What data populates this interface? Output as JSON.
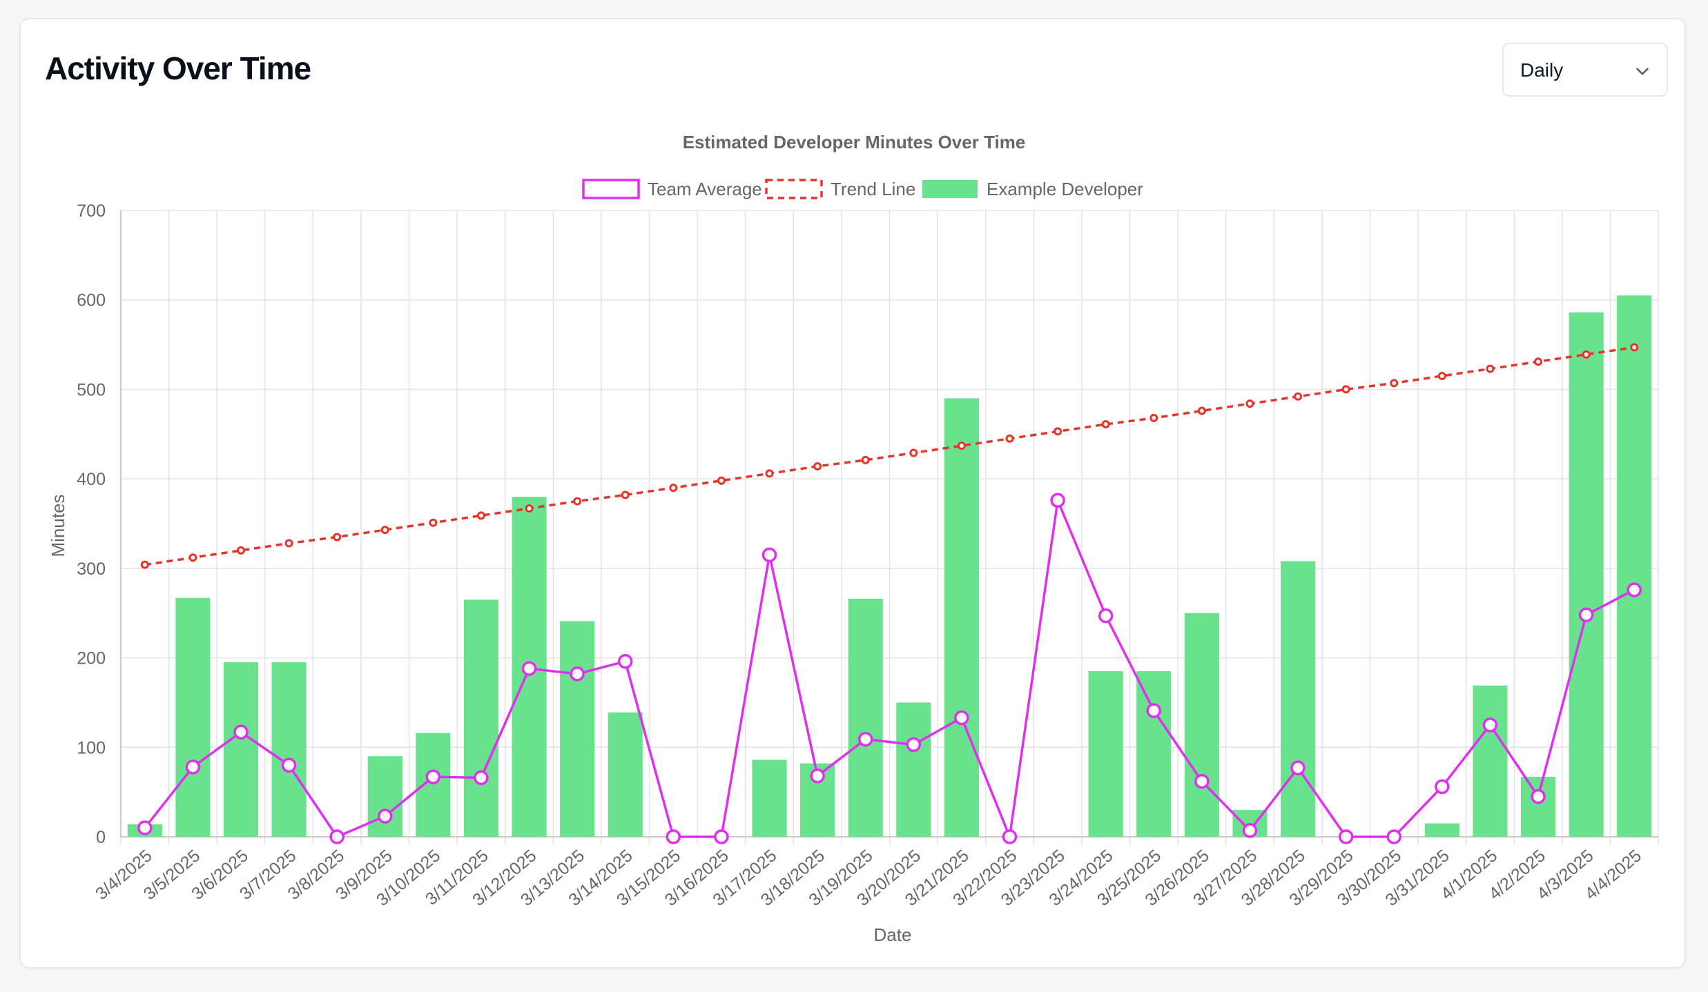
{
  "card": {
    "title": "Activity Over Time",
    "period_select": {
      "value": "Daily",
      "icon": "chevron-down-icon"
    }
  },
  "colors": {
    "team_average": "#e02ff0",
    "trend_line": "#e8332a",
    "developer_bar": "#69e28d",
    "grid": "#e3e3e3"
  },
  "chart_data": {
    "type": "bar",
    "title": "Estimated Developer Minutes Over Time",
    "xlabel": "Date",
    "ylabel": "Minutes",
    "ylim": [
      0,
      700
    ],
    "yticks": [
      0,
      100,
      200,
      300,
      400,
      500,
      600,
      700
    ],
    "grid": true,
    "legend_position": "top",
    "categories": [
      "3/4/2025",
      "3/5/2025",
      "3/6/2025",
      "3/7/2025",
      "3/8/2025",
      "3/9/2025",
      "3/10/2025",
      "3/11/2025",
      "3/12/2025",
      "3/13/2025",
      "3/14/2025",
      "3/15/2025",
      "3/16/2025",
      "3/17/2025",
      "3/18/2025",
      "3/19/2025",
      "3/20/2025",
      "3/21/2025",
      "3/22/2025",
      "3/23/2025",
      "3/24/2025",
      "3/25/2025",
      "3/26/2025",
      "3/27/2025",
      "3/28/2025",
      "3/29/2025",
      "3/30/2025",
      "3/31/2025",
      "4/1/2025",
      "4/2/2025",
      "4/3/2025",
      "4/4/2025"
    ],
    "series": [
      {
        "name": "Team Average",
        "type": "line",
        "values": [
          10,
          78,
          117,
          80,
          0,
          23,
          67,
          66,
          188,
          182,
          196,
          0,
          0,
          315,
          68,
          109,
          103,
          133,
          0,
          376,
          247,
          141,
          62,
          7,
          77,
          0,
          0,
          56,
          125,
          45,
          248,
          276
        ]
      },
      {
        "name": "Trend Line",
        "type": "line",
        "style": "dashed",
        "values": [
          304,
          312,
          320,
          328,
          335,
          343,
          351,
          359,
          367,
          375,
          382,
          390,
          398,
          406,
          414,
          421,
          429,
          437,
          445,
          453,
          461,
          468,
          476,
          484,
          492,
          500,
          507,
          515,
          523,
          531,
          539,
          547
        ]
      },
      {
        "name": "Example Developer",
        "type": "bar",
        "values": [
          14,
          267,
          195,
          195,
          0,
          90,
          116,
          265,
          380,
          241,
          139,
          0,
          0,
          86,
          82,
          266,
          150,
          490,
          0,
          0,
          185,
          185,
          250,
          30,
          308,
          0,
          0,
          15,
          169,
          67,
          586,
          605
        ]
      }
    ]
  }
}
